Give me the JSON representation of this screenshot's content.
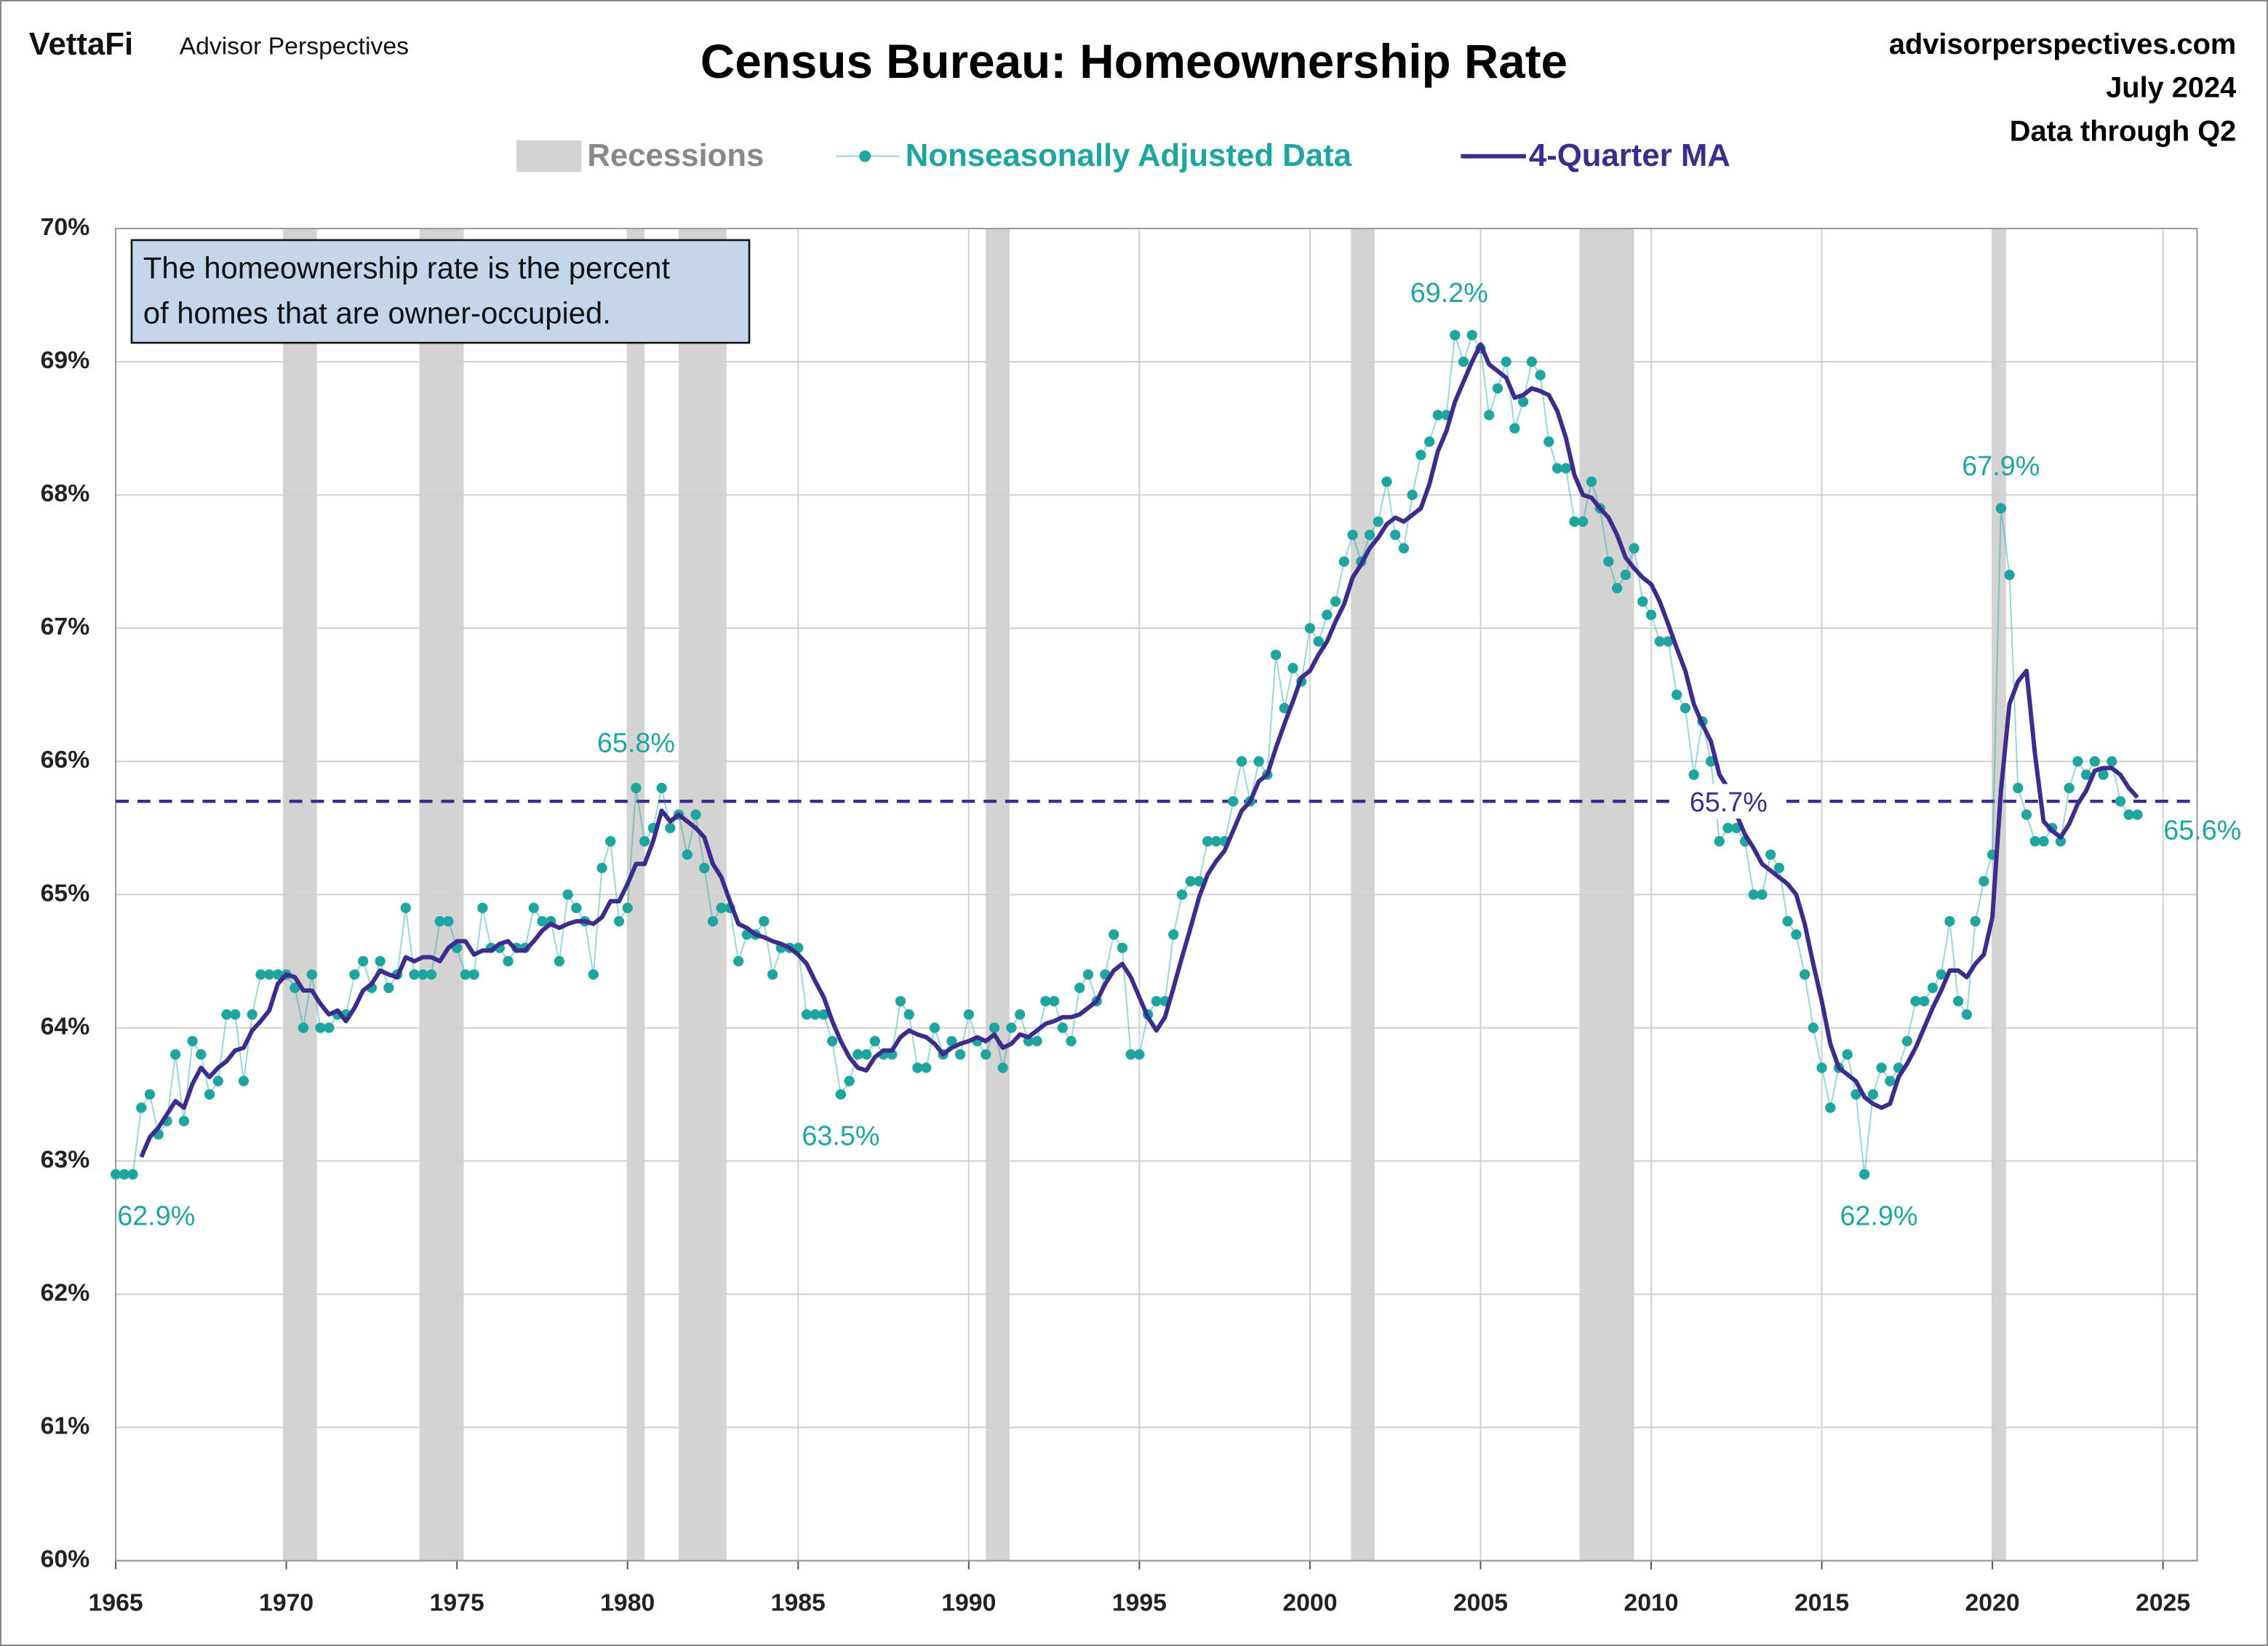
{
  "header": {
    "brand": "VettaFi",
    "brand_sub": "Advisor Perspectives",
    "site": "advisorperspectives.com",
    "date": "July 2024",
    "through": "Data through Q2"
  },
  "chart_data": {
    "type": "line",
    "title": "Census Bureau: Homeownership Rate",
    "note": [
      "The homeownership rate is the percent",
      "of homes that are owner-occupied."
    ],
    "recession_label": "Recessions",
    "recession_color": "#d3d3d3",
    "recessions": [
      [
        1969.9,
        1970.9
      ],
      [
        1973.9,
        1975.2
      ],
      [
        1980.0,
        1980.5
      ],
      [
        1981.5,
        1982.9
      ],
      [
        1990.5,
        1991.2
      ],
      [
        2001.2,
        2001.9
      ],
      [
        2007.9,
        2009.5
      ],
      [
        2020.0,
        2020.4
      ]
    ],
    "xlim": [
      1965,
      2026
    ],
    "xticks": [
      1965,
      1970,
      1975,
      1980,
      1985,
      1990,
      1995,
      2000,
      2005,
      2010,
      2015,
      2020,
      2025
    ],
    "ylim": [
      60,
      70
    ],
    "yticks": [
      {
        "value": 60,
        "label": "60%"
      },
      {
        "value": 61,
        "label": "61%"
      },
      {
        "value": 62,
        "label": "62%"
      },
      {
        "value": 63,
        "label": "63%"
      },
      {
        "value": 64,
        "label": "64%"
      },
      {
        "value": 65,
        "label": "65%"
      },
      {
        "value": 66,
        "label": "66%"
      },
      {
        "value": 67,
        "label": "67%"
      },
      {
        "value": 68,
        "label": "68%"
      },
      {
        "value": 69,
        "label": "69%"
      },
      {
        "value": 70,
        "label": "70%"
      }
    ],
    "grid": true,
    "x": [
      1965,
      1965.25,
      1965.5,
      1965.75,
      1966,
      1966.25,
      1966.5,
      1966.75,
      1967,
      1967.25,
      1967.5,
      1967.75,
      1968,
      1968.25,
      1968.5,
      1968.75,
      1969,
      1969.25,
      1969.5,
      1969.75,
      1970,
      1970.25,
      1970.5,
      1970.75,
      1971,
      1971.25,
      1971.5,
      1971.75,
      1972,
      1972.25,
      1972.5,
      1972.75,
      1973,
      1973.25,
      1973.5,
      1973.75,
      1974,
      1974.25,
      1974.5,
      1974.75,
      1975,
      1975.25,
      1975.5,
      1975.75,
      1976,
      1976.25,
      1976.5,
      1976.75,
      1977,
      1977.25,
      1977.5,
      1977.75,
      1978,
      1978.25,
      1978.5,
      1978.75,
      1979,
      1979.25,
      1979.5,
      1979.75,
      1980,
      1980.25,
      1980.5,
      1980.75,
      1981,
      1981.25,
      1981.5,
      1981.75,
      1982,
      1982.25,
      1982.5,
      1982.75,
      1983,
      1983.25,
      1983.5,
      1983.75,
      1984,
      1984.25,
      1984.5,
      1984.75,
      1985,
      1985.25,
      1985.5,
      1985.75,
      1986,
      1986.25,
      1986.5,
      1986.75,
      1987,
      1987.25,
      1987.5,
      1987.75,
      1988,
      1988.25,
      1988.5,
      1988.75,
      1989,
      1989.25,
      1989.5,
      1989.75,
      1990,
      1990.25,
      1990.5,
      1990.75,
      1991,
      1991.25,
      1991.5,
      1991.75,
      1992,
      1992.25,
      1992.5,
      1992.75,
      1993,
      1993.25,
      1993.5,
      1993.75,
      1994,
      1994.25,
      1994.5,
      1994.75,
      1995,
      1995.25,
      1995.5,
      1995.75,
      1996,
      1996.25,
      1996.5,
      1996.75,
      1997,
      1997.25,
      1997.5,
      1997.75,
      1998,
      1998.25,
      1998.5,
      1998.75,
      1999,
      1999.25,
      1999.5,
      1999.75,
      2000,
      2000.25,
      2000.5,
      2000.75,
      2001,
      2001.25,
      2001.5,
      2001.75,
      2002,
      2002.25,
      2002.5,
      2002.75,
      2003,
      2003.25,
      2003.5,
      2003.75,
      2004,
      2004.25,
      2004.5,
      2004.75,
      2005,
      2005.25,
      2005.5,
      2005.75,
      2006,
      2006.25,
      2006.5,
      2006.75,
      2007,
      2007.25,
      2007.5,
      2007.75,
      2008,
      2008.25,
      2008.5,
      2008.75,
      2009,
      2009.25,
      2009.5,
      2009.75,
      2010,
      2010.25,
      2010.5,
      2010.75,
      2011,
      2011.25,
      2011.5,
      2011.75,
      2012,
      2012.25,
      2012.5,
      2012.75,
      2013,
      2013.25,
      2013.5,
      2013.75,
      2014,
      2014.25,
      2014.5,
      2014.75,
      2015,
      2015.25,
      2015.5,
      2015.75,
      2016,
      2016.25,
      2016.5,
      2016.75,
      2017,
      2017.25,
      2017.5,
      2017.75,
      2018,
      2018.25,
      2018.5,
      2018.75,
      2019,
      2019.25,
      2019.5,
      2019.75,
      2020,
      2020.25,
      2020.5,
      2020.75,
      2021,
      2021.25,
      2021.5,
      2021.75,
      2022,
      2022.25,
      2022.5,
      2022.75,
      2023,
      2023.25,
      2023.5,
      2023.75,
      2024,
      2024.25
    ],
    "series": [
      {
        "name": "Nonseasonally Adjusted Data",
        "color": "#1fa59f",
        "markers": true,
        "values": [
          62.9,
          62.9,
          62.9,
          63.4,
          63.5,
          63.2,
          63.3,
          63.8,
          63.3,
          63.9,
          63.8,
          63.5,
          63.6,
          64.1,
          64.1,
          63.6,
          64.1,
          64.4,
          64.4,
          64.4,
          64.4,
          64.3,
          64.0,
          64.4,
          64.0,
          64.0,
          64.1,
          64.1,
          64.4,
          64.5,
          64.3,
          64.5,
          64.3,
          64.4,
          64.9,
          64.4,
          64.4,
          64.4,
          64.8,
          64.8,
          64.6,
          64.4,
          64.4,
          64.9,
          64.6,
          64.6,
          64.5,
          64.6,
          64.6,
          64.9,
          64.8,
          64.8,
          64.5,
          65.0,
          64.9,
          64.8,
          64.4,
          65.2,
          65.4,
          64.8,
          64.9,
          65.8,
          65.4,
          65.5,
          65.8,
          65.5,
          65.6,
          65.3,
          65.6,
          65.2,
          64.8,
          64.9,
          64.9,
          64.5,
          64.7,
          64.7,
          64.8,
          64.4,
          64.6,
          64.6,
          64.6,
          64.1,
          64.1,
          64.1,
          63.9,
          63.5,
          63.6,
          63.8,
          63.8,
          63.9,
          63.8,
          63.8,
          64.2,
          64.1,
          63.7,
          63.7,
          64.0,
          63.8,
          63.9,
          63.8,
          64.1,
          63.9,
          63.8,
          64.0,
          63.7,
          64.0,
          64.1,
          63.9,
          63.9,
          64.2,
          64.2,
          64.0,
          63.9,
          64.3,
          64.4,
          64.2,
          64.4,
          64.7,
          64.6,
          63.8,
          63.8,
          64.1,
          64.2,
          64.2,
          64.7,
          65.0,
          65.1,
          65.1,
          65.4,
          65.4,
          65.4,
          65.7,
          66.0,
          65.7,
          66.0,
          65.9,
          66.8,
          66.4,
          66.7,
          66.6,
          67.0,
          66.9,
          67.1,
          67.2,
          67.5,
          67.7,
          67.5,
          67.7,
          67.8,
          68.1,
          67.7,
          67.6,
          68.0,
          68.3,
          68.4,
          68.6,
          68.6,
          69.2,
          69.0,
          69.2,
          69.1,
          68.6,
          68.8,
          69.0,
          68.5,
          68.7,
          69.0,
          68.9,
          68.4,
          68.2,
          68.2,
          67.8,
          67.8,
          68.1,
          67.9,
          67.5,
          67.3,
          67.4,
          67.6,
          67.2,
          67.1,
          66.9,
          66.9,
          66.5,
          66.4,
          65.9,
          66.3,
          66.0,
          65.4,
          65.5,
          65.5,
          65.4,
          65.0,
          65.0,
          65.3,
          65.2,
          64.8,
          64.7,
          64.4,
          64.0,
          63.7,
          63.4,
          63.7,
          63.8,
          63.5,
          62.9,
          63.5,
          63.7,
          63.6,
          63.7,
          63.9,
          64.2,
          64.2,
          64.3,
          64.4,
          64.8,
          64.2,
          64.1,
          64.8,
          65.1,
          65.3,
          67.9,
          67.4,
          65.8,
          65.6,
          65.4,
          65.4,
          65.5,
          65.4,
          65.8,
          66.0,
          65.9,
          66.0,
          65.9,
          66.0,
          65.7,
          65.6,
          65.6
        ]
      },
      {
        "name": "4-Quarter MA",
        "color": "#3d2b8e",
        "markers": false,
        "values": [
          null,
          null,
          null,
          63.03,
          63.18,
          63.25,
          63.35,
          63.45,
          63.4,
          63.58,
          63.7,
          63.63,
          63.7,
          63.75,
          63.83,
          63.85,
          63.98,
          64.05,
          64.13,
          64.33,
          64.4,
          64.38,
          64.28,
          64.28,
          64.18,
          64.1,
          64.13,
          64.05,
          64.15,
          64.28,
          64.33,
          64.43,
          64.4,
          64.38,
          64.53,
          64.5,
          64.53,
          64.53,
          64.5,
          64.6,
          64.65,
          64.65,
          64.55,
          64.58,
          64.58,
          64.63,
          64.65,
          64.58,
          64.58,
          64.65,
          64.73,
          64.78,
          64.75,
          64.78,
          64.8,
          64.8,
          64.78,
          64.83,
          64.95,
          64.95,
          65.08,
          65.23,
          65.23,
          65.4,
          65.63,
          65.55,
          65.6,
          65.55,
          65.5,
          65.43,
          65.23,
          65.13,
          64.95,
          64.78,
          64.75,
          64.7,
          64.68,
          64.65,
          64.63,
          64.6,
          64.55,
          64.48,
          64.35,
          64.23,
          64.05,
          63.9,
          63.78,
          63.7,
          63.68,
          63.78,
          63.83,
          63.83,
          63.93,
          63.98,
          63.95,
          63.93,
          63.88,
          63.8,
          63.85,
          63.88,
          63.9,
          63.93,
          63.9,
          63.95,
          63.85,
          63.88,
          63.95,
          63.93,
          63.98,
          64.03,
          64.05,
          64.08,
          64.08,
          64.1,
          64.15,
          64.2,
          64.33,
          64.43,
          64.48,
          64.38,
          64.23,
          64.08,
          63.98,
          64.08,
          64.3,
          64.53,
          64.75,
          64.98,
          65.15,
          65.25,
          65.33,
          65.48,
          65.63,
          65.7,
          65.85,
          65.9,
          66.1,
          66.28,
          66.45,
          66.63,
          66.68,
          66.8,
          66.9,
          67.05,
          67.18,
          67.38,
          67.48,
          67.6,
          67.68,
          67.78,
          67.83,
          67.8,
          67.85,
          67.9,
          68.08,
          68.33,
          68.48,
          68.7,
          68.85,
          69.0,
          69.13,
          68.98,
          68.93,
          68.88,
          68.73,
          68.75,
          68.8,
          68.78,
          68.75,
          68.63,
          68.43,
          68.15,
          68.0,
          67.98,
          67.9,
          67.83,
          67.7,
          67.53,
          67.45,
          67.38,
          67.33,
          67.2,
          67.03,
          66.85,
          66.68,
          66.43,
          66.28,
          66.15,
          65.9,
          65.8,
          65.6,
          65.45,
          65.35,
          65.23,
          65.18,
          65.13,
          65.08,
          65.0,
          64.78,
          64.48,
          64.2,
          63.88,
          63.7,
          63.65,
          63.6,
          63.48,
          63.43,
          63.4,
          63.43,
          63.63,
          63.73,
          63.85,
          64.0,
          64.15,
          64.28,
          64.43,
          64.43,
          64.38,
          64.48,
          64.55,
          64.83,
          65.78,
          66.43,
          66.6,
          66.68,
          66.05,
          65.55,
          65.48,
          65.43,
          65.53,
          65.68,
          65.78,
          65.93,
          65.95,
          65.95,
          65.9,
          65.8,
          65.73
        ]
      }
    ],
    "average": {
      "value": 65.7,
      "label": "65.7%",
      "color": "#3d2b8e"
    },
    "annotations": [
      {
        "label": "62.9%",
        "value": 62.9,
        "x": 1965
      },
      {
        "label": "65.8%",
        "value": 65.8,
        "x": 1980.25
      },
      {
        "label": "63.5%",
        "value": 63.5,
        "x": 1986.25
      },
      {
        "label": "69.2%",
        "value": 69.2,
        "x": 2004.25
      },
      {
        "label": "62.9%",
        "value": 62.9,
        "x": 2016.25
      },
      {
        "label": "67.9%",
        "value": 67.9,
        "x": 2020.25
      },
      {
        "label": "65.6%",
        "value": 65.6,
        "x": 2024.25
      }
    ]
  }
}
